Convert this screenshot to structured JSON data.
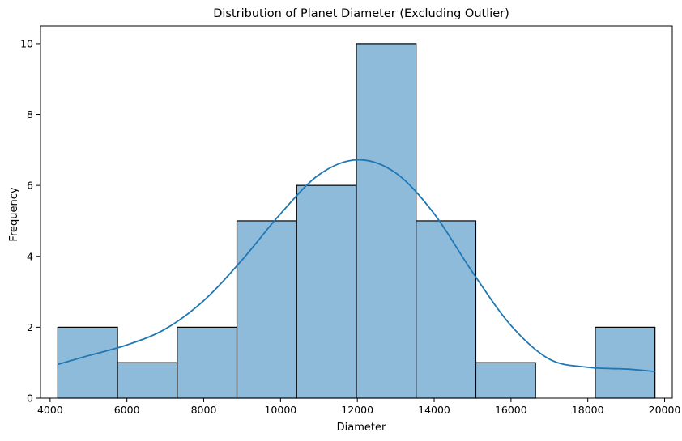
{
  "chart_data": {
    "type": "bar",
    "title": "Distribution of Planet Diameter (Excluding Outlier)",
    "xlabel": "Diameter",
    "ylabel": "Frequency",
    "xlim": [
      3750,
      20200
    ],
    "ylim": [
      0,
      10.5
    ],
    "xticks": [
      4000,
      6000,
      8000,
      10000,
      12000,
      14000,
      16000,
      18000,
      20000
    ],
    "yticks": [
      0,
      2,
      4,
      6,
      8,
      10
    ],
    "bins": [
      {
        "start": 4200,
        "end": 5755,
        "count": 2
      },
      {
        "start": 5755,
        "end": 7310,
        "count": 1
      },
      {
        "start": 7310,
        "end": 8865,
        "count": 2
      },
      {
        "start": 8865,
        "end": 10420,
        "count": 5
      },
      {
        "start": 10420,
        "end": 11975,
        "count": 6
      },
      {
        "start": 11975,
        "end": 13530,
        "count": 10
      },
      {
        "start": 13530,
        "end": 15085,
        "count": 5
      },
      {
        "start": 15085,
        "end": 16640,
        "count": 1
      },
      {
        "start": 16640,
        "end": 18195,
        "count": 0
      },
      {
        "start": 18195,
        "end": 19750,
        "count": 2
      }
    ],
    "kde": {
      "x": [
        4200,
        5000,
        6000,
        7000,
        8000,
        9000,
        10000,
        11000,
        12000,
        13000,
        14000,
        15000,
        16000,
        17000,
        18000,
        19000,
        19750
      ],
      "y": [
        0.95,
        1.2,
        1.5,
        1.95,
        2.75,
        3.9,
        5.2,
        6.3,
        6.72,
        6.35,
        5.2,
        3.55,
        2.05,
        1.1,
        0.87,
        0.82,
        0.75
      ]
    },
    "colors": {
      "bar": "#8fbbdb",
      "kde": "#1f77b4"
    },
    "grid": false,
    "legend": "none"
  }
}
